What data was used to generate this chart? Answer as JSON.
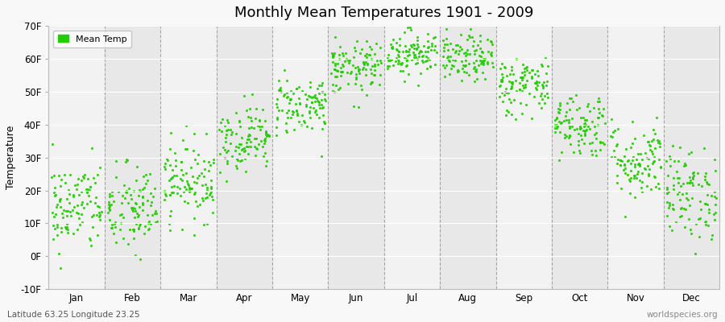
{
  "title": "Monthly Mean Temperatures 1901 - 2009",
  "ylabel": "Temperature",
  "footer_left": "Latitude 63.25 Longitude 23.25",
  "footer_right": "worldspecies.org",
  "legend_label": "Mean Temp",
  "dot_color": "#22cc00",
  "ylim": [
    -10,
    70
  ],
  "yticks": [
    -10,
    0,
    10,
    20,
    30,
    40,
    50,
    60,
    70
  ],
  "ytick_labels": [
    "-10F",
    "0F",
    "10F",
    "20F",
    "30F",
    "40F",
    "50F",
    "60F",
    "70F"
  ],
  "months": [
    "Jan",
    "Feb",
    "Mar",
    "Apr",
    "May",
    "Jun",
    "Jul",
    "Aug",
    "Sep",
    "Oct",
    "Nov",
    "Dec"
  ],
  "month_mean_temps_F": [
    15.0,
    14.0,
    23.0,
    36.0,
    46.0,
    57.0,
    62.0,
    60.0,
    52.0,
    40.0,
    29.0,
    19.0
  ],
  "month_std_temps_F": [
    7.0,
    7.0,
    6.0,
    5.0,
    4.5,
    4.0,
    3.5,
    3.5,
    4.5,
    5.0,
    6.0,
    7.0
  ],
  "n_years": 109,
  "random_seed": 42,
  "band_colors": [
    "#f2f2f2",
    "#e8e8e8"
  ],
  "fig_bg": "#f8f8f8",
  "dashed_line_color": "#888888"
}
